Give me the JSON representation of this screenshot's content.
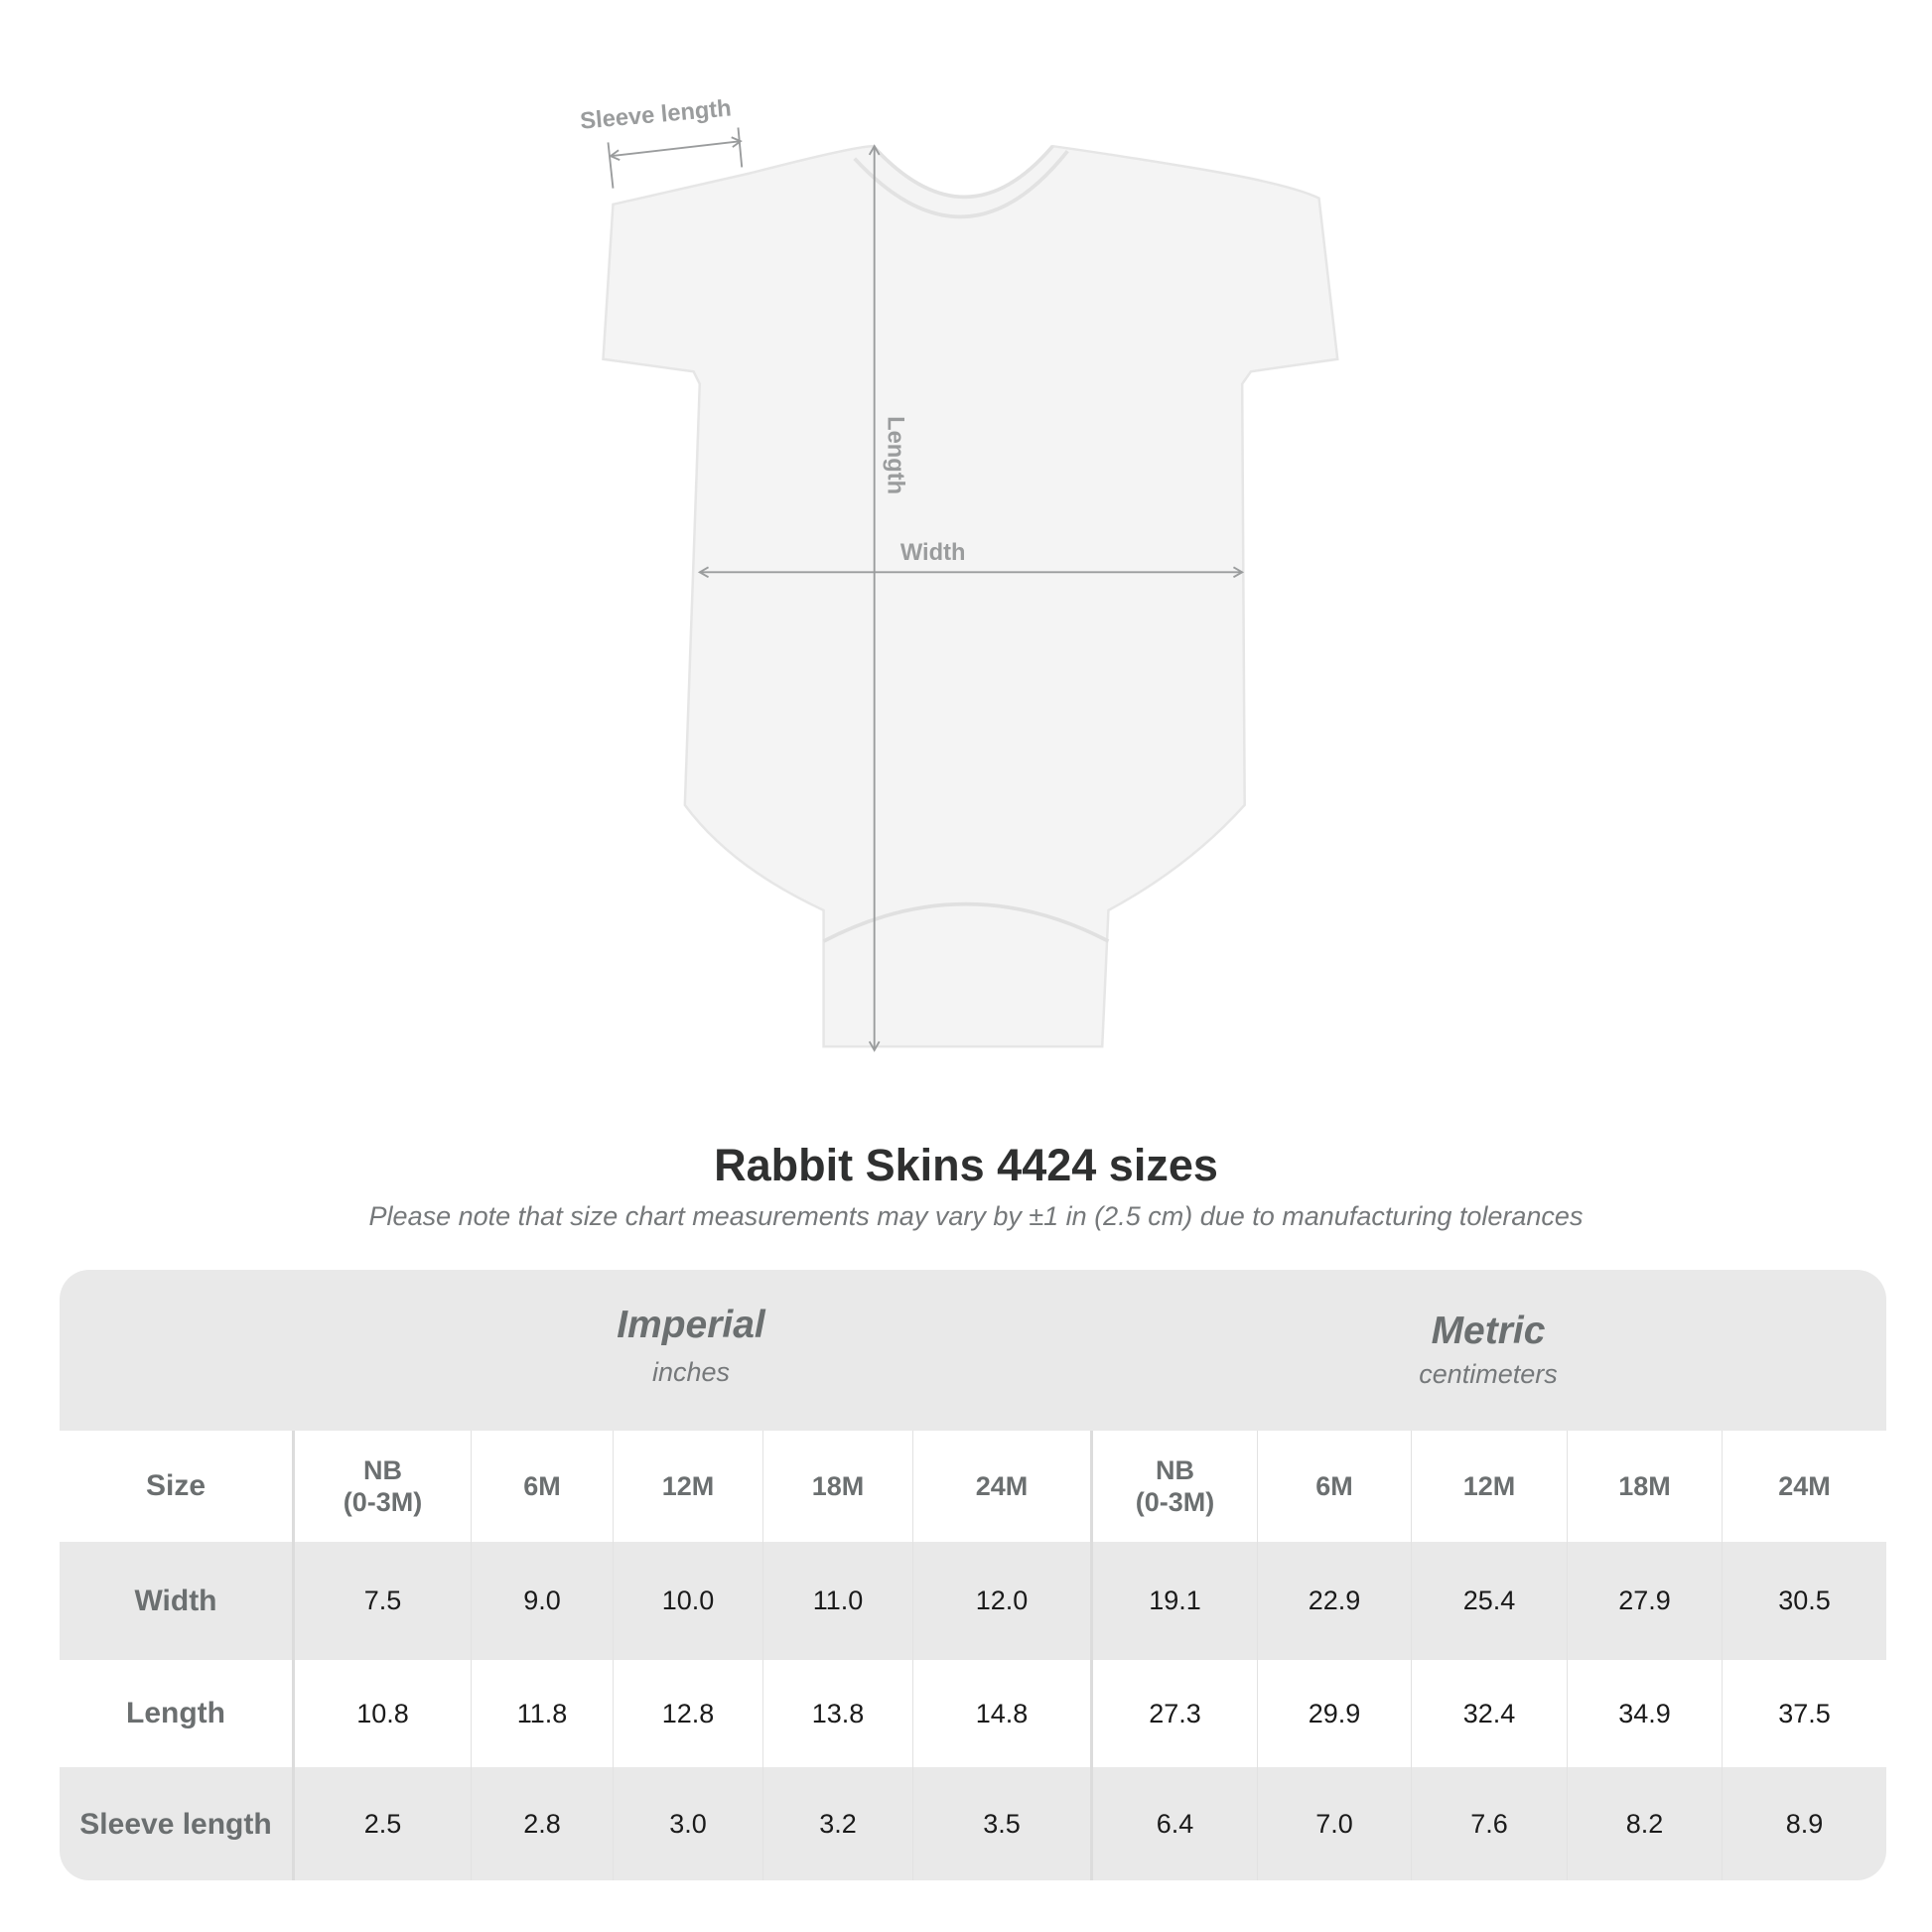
{
  "diagram": {
    "labels": {
      "sleeve": "Sleeve length",
      "length": "Length",
      "width": "Width"
    },
    "garment_color": "#f4f4f4",
    "arrow_color": "#9a9c9d"
  },
  "title": "Rabbit Skins 4424 sizes",
  "subtitle": "Please note that size chart measurements may vary by ±1 in (2.5 cm) due to manufacturing tolerances",
  "table": {
    "imperial": {
      "name": "Imperial",
      "unit": "inches"
    },
    "metric": {
      "name": "Metric",
      "unit": "centimeters"
    },
    "size_label": "Size",
    "sizes": [
      "NB\n(0-3M)",
      "6M",
      "12M",
      "18M",
      "24M"
    ],
    "rows": [
      {
        "label": "Width",
        "imperial": [
          "7.5",
          "9.0",
          "10.0",
          "11.0",
          "12.0"
        ],
        "metric": [
          "19.1",
          "22.9",
          "25.4",
          "27.9",
          "30.5"
        ]
      },
      {
        "label": "Length",
        "imperial": [
          "10.8",
          "11.8",
          "12.8",
          "13.8",
          "14.8"
        ],
        "metric": [
          "27.3",
          "29.9",
          "32.4",
          "34.9",
          "37.5"
        ]
      },
      {
        "label": "Sleeve length",
        "imperial": [
          "2.5",
          "2.8",
          "3.0",
          "3.2",
          "3.5"
        ],
        "metric": [
          "6.4",
          "7.0",
          "7.6",
          "8.2",
          "8.9"
        ]
      }
    ]
  }
}
